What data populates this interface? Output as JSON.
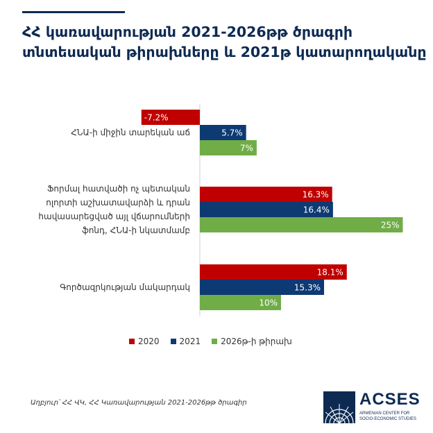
{
  "title_lines": [
    "ՀՀ կառավարության 2021-2026թթ ծրագրի",
    "տնտեսական թիրախները և 2021թ կատարողականը"
  ],
  "chart_data": {
    "type": "bar",
    "orientation": "horizontal",
    "categories": [
      [
        "ՀՆԱ-ի միջին տարեկան աճ"
      ],
      [
        "Ֆորմալ հատվածի ոչ պետական",
        "ոլորտի աշխատավարձի և դրան",
        "հավասարեցված այլ վճարումների",
        "ֆոնդ, ՀՆԱ-ի նկատմամբ"
      ],
      [
        "Գործազրկության մակարդակ"
      ]
    ],
    "series": [
      {
        "name": "2020",
        "color": "#c00000",
        "values": [
          -7.2,
          16.3,
          18.1
        ],
        "labels": [
          "-7.2%",
          "16.3%",
          "18.1%"
        ]
      },
      {
        "name": "2021",
        "color": "#0d3a73",
        "values": [
          5.7,
          16.4,
          15.3
        ],
        "labels": [
          "5.7%",
          "16.4%",
          "15.3%"
        ]
      },
      {
        "name": "2026թ-ի թիրախ",
        "color": "#70ad47",
        "values": [
          7,
          25,
          10
        ],
        "labels": [
          "7%",
          "25%",
          "10%"
        ]
      }
    ],
    "legend_position": "bottom"
  },
  "source": "Աղբյուր՝ ՀՀ ՎԿ, ՀՀ Կառավարության 2021-2026թթ ծրագիր",
  "logo": {
    "name": "ACSES",
    "subtitle_lines": [
      "ARMENIAN CENTER FOR",
      "SOCIO-ECONOMIC STUDIES"
    ]
  }
}
